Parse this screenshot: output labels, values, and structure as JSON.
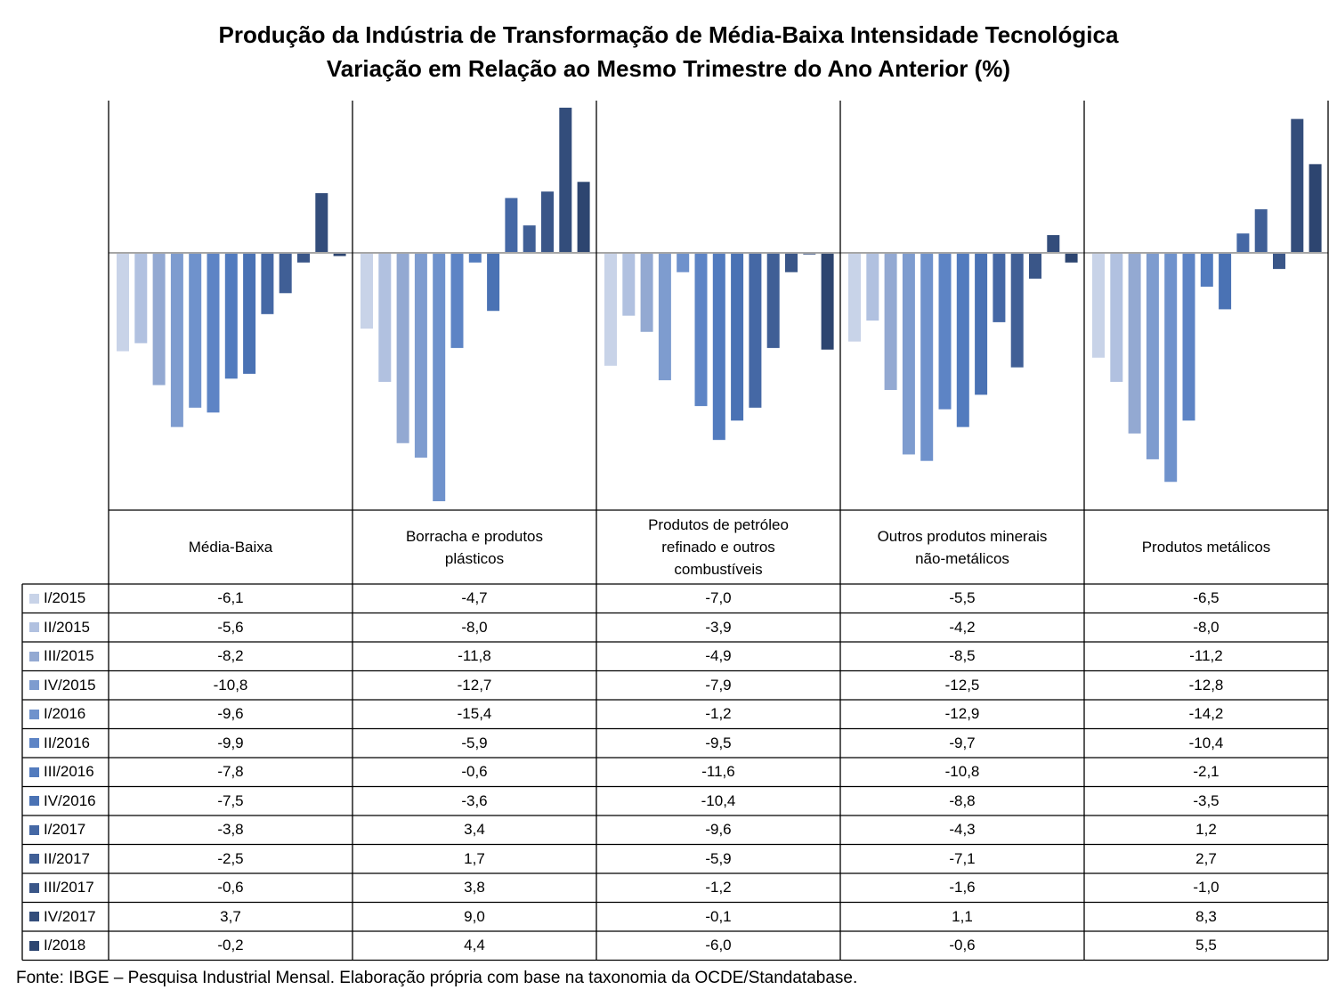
{
  "title": "Produção da Indústria de Transformação de Média-Baixa Intensidade Tecnológica",
  "subtitle": "Variação em Relação ao Mesmo Trimestre do Ano Anterior (%)",
  "source": "Fonte: IBGE – Pesquisa Industrial Mensal. Elaboração própria com base na taxonomia da OCDE/Standatabase.",
  "chart_data": {
    "type": "bar",
    "categories": [
      "Média-Baixa",
      "Borracha e produtos plásticos",
      "Produtos de petróleo refinado e outros combustíveis",
      "Outros produtos minerais não-metálicos",
      "Produtos metálicos"
    ],
    "category_labels": [
      [
        "Média-Baixa"
      ],
      [
        "Borracha e produtos",
        "plásticos"
      ],
      [
        "Produtos de petróleo",
        "refinado e outros",
        "combustíveis"
      ],
      [
        "Outros produtos minerais",
        "não-metálicos"
      ],
      [
        "Produtos metálicos"
      ]
    ],
    "ylim": [
      -16,
      9.5
    ],
    "grid": false,
    "legend": "left-table",
    "series": [
      {
        "name": "I/2015",
        "color": "#c8d3e8",
        "values": [
          -6.1,
          -4.7,
          -7.0,
          -5.5,
          -6.5
        ],
        "labels": [
          "-6,1",
          "-4,7",
          "-7,0",
          "-5,5",
          "-6,5"
        ]
      },
      {
        "name": "II/2015",
        "color": "#b1c1e0",
        "values": [
          -5.6,
          -8.0,
          -3.9,
          -4.2,
          -8.0
        ],
        "labels": [
          "-5,6",
          "-8,0",
          "-3,9",
          "-4,2",
          "-8,0"
        ]
      },
      {
        "name": "III/2015",
        "color": "#93a9d2",
        "values": [
          -8.2,
          -11.8,
          -4.9,
          -8.5,
          -11.2
        ],
        "labels": [
          "-8,2",
          "-11,8",
          "-4,9",
          "-8,5",
          "-11,2"
        ]
      },
      {
        "name": "IV/2015",
        "color": "#7e9ccf",
        "values": [
          -10.8,
          -12.7,
          -7.9,
          -12.5,
          -12.8
        ],
        "labels": [
          "-10,8",
          "-12,7",
          "-7,9",
          "-12,5",
          "-12,8"
        ]
      },
      {
        "name": "I/2016",
        "color": "#6f92cc",
        "values": [
          -9.6,
          -15.4,
          -1.2,
          -12.9,
          -14.2
        ],
        "labels": [
          "-9,6",
          "-15,4",
          "-1,2",
          "-12,9",
          "-14,2"
        ]
      },
      {
        "name": "II/2016",
        "color": "#5d84c5",
        "values": [
          -9.9,
          -5.9,
          -9.5,
          -9.7,
          -10.4
        ],
        "labels": [
          "-9,9",
          "-5,9",
          "-9,5",
          "-9,7",
          "-10,4"
        ]
      },
      {
        "name": "III/2016",
        "color": "#527bbe",
        "values": [
          -7.8,
          -0.6,
          -11.6,
          -10.8,
          -2.1
        ],
        "labels": [
          "-7,8",
          "-0,6",
          "-11,6",
          "-10,8",
          "-2,1"
        ]
      },
      {
        "name": "IV/2016",
        "color": "#4a72b4",
        "values": [
          -7.5,
          -3.6,
          -10.4,
          -8.8,
          -3.5
        ],
        "labels": [
          "-7,5",
          "-3,6",
          "-10,4",
          "-8,8",
          "-3,5"
        ]
      },
      {
        "name": "I/2017",
        "color": "#4568a5",
        "values": [
          -3.8,
          3.4,
          -9.6,
          -4.3,
          1.2
        ],
        "labels": [
          "-3,8",
          "3,4",
          "-9,6",
          "-4,3",
          "1,2"
        ]
      },
      {
        "name": "II/2017",
        "color": "#405f96",
        "values": [
          -2.5,
          1.7,
          -5.9,
          -7.1,
          2.7
        ],
        "labels": [
          "-2,5",
          "1,7",
          "-5,9",
          "-7,1",
          "2,7"
        ]
      },
      {
        "name": "III/2017",
        "color": "#3a5688",
        "values": [
          -0.6,
          3.8,
          -1.2,
          -1.6,
          -1.0
        ],
        "labels": [
          "-0,6",
          "3,8",
          "-1,2",
          "-1,6",
          "-1,0"
        ]
      },
      {
        "name": "IV/2017",
        "color": "#334d7b",
        "values": [
          3.7,
          9.0,
          -0.1,
          1.1,
          8.3
        ],
        "labels": [
          "3,7",
          "9,0",
          "-0,1",
          "1,1",
          "8,3"
        ]
      },
      {
        "name": "I/2018",
        "color": "#2d4570",
        "values": [
          -0.2,
          4.4,
          -6.0,
          -0.6,
          5.5
        ],
        "labels": [
          "-0,2",
          "4,4",
          "-6,0",
          "-0,6",
          "5,5"
        ]
      }
    ]
  }
}
